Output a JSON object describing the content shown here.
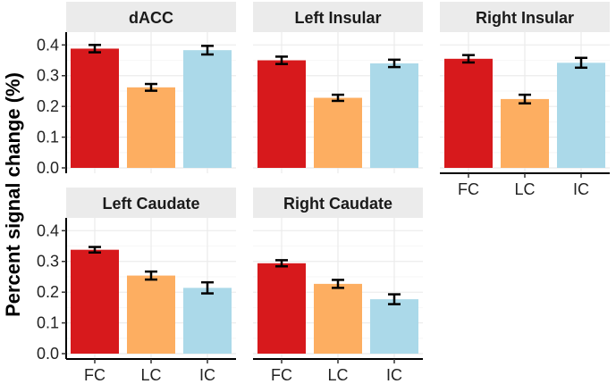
{
  "chart_data": {
    "type": "bar",
    "ylabel": "Percent signal change (%)",
    "xlabel": "",
    "categories": [
      "FC",
      "LC",
      "IC"
    ],
    "ylim": [
      0,
      0.4
    ],
    "yticks": [
      "0.0",
      "0.1",
      "0.2",
      "0.3",
      "0.4"
    ],
    "colors": [
      "#d7191c",
      "#fdae61",
      "#abd9e9"
    ],
    "grid": true,
    "strip_color": "#ebebeb",
    "panels": [
      {
        "title": "dACC",
        "values": [
          0.388,
          0.262,
          0.383
        ],
        "errors": [
          0.012,
          0.011,
          0.014
        ]
      },
      {
        "title": "Left Insular",
        "values": [
          0.35,
          0.228,
          0.34
        ],
        "errors": [
          0.012,
          0.01,
          0.012
        ]
      },
      {
        "title": "Right Insular",
        "values": [
          0.355,
          0.224,
          0.342
        ],
        "errors": [
          0.012,
          0.014,
          0.016
        ]
      },
      {
        "title": "Left Caudate",
        "values": [
          0.338,
          0.254,
          0.214
        ],
        "errors": [
          0.009,
          0.013,
          0.018
        ]
      },
      {
        "title": "Right Caudate",
        "values": [
          0.294,
          0.227,
          0.177
        ],
        "errors": [
          0.01,
          0.013,
          0.016
        ]
      }
    ]
  }
}
